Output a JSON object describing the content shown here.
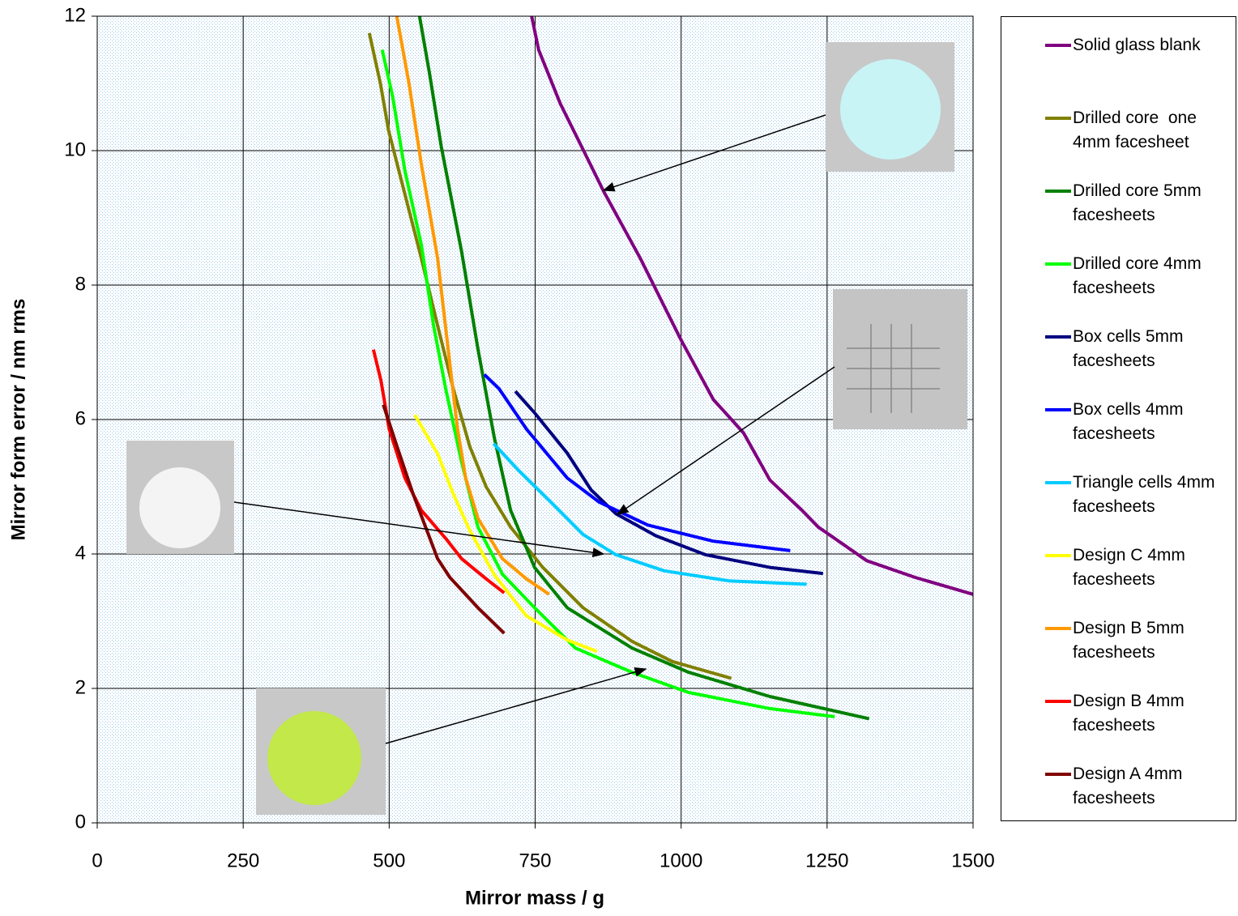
{
  "chart_data": {
    "type": "line",
    "xlabel": "Mirror mass / g",
    "ylabel": "Mirror form error / nm rms",
    "xlim": [
      0,
      1500
    ],
    "xticks": [
      0,
      250,
      500,
      750,
      1000,
      1250,
      1500
    ],
    "ylim": [
      0,
      12
    ],
    "yticks": [
      0,
      2,
      4,
      6,
      8,
      10,
      12
    ],
    "grid": true,
    "legend": "right",
    "series": [
      {
        "name": "Solid glass blank",
        "color": "#800080",
        "x": [
          744,
          756,
          793,
          833,
          867,
          930,
          999,
          1055,
          1107,
          1152,
          1207,
          1235,
          1318,
          1401,
          1500
        ],
        "values": [
          12.0,
          11.5,
          10.7,
          10.0,
          9.4,
          8.4,
          7.2,
          6.3,
          5.8,
          5.1,
          4.65,
          4.4,
          3.9,
          3.65,
          3.4
        ]
      },
      {
        "name": "Drilled core  one 4mm facesheet",
        "color": "#808000",
        "x": [
          466,
          485,
          499,
          527,
          555,
          583,
          610,
          638,
          666,
          708,
          763,
          832,
          916,
          985,
          1086
        ],
        "values": [
          11.75,
          11.0,
          10.3,
          9.35,
          8.4,
          7.4,
          6.45,
          5.6,
          5.0,
          4.4,
          3.8,
          3.2,
          2.7,
          2.4,
          2.15
        ]
      },
      {
        "name": "Drilled core 5mm facesheets",
        "color": "#008000",
        "x": [
          552,
          569,
          589,
          624,
          652,
          680,
          708,
          749,
          805,
          916,
          1013,
          1152,
          1322
        ],
        "values": [
          12.0,
          11.15,
          10.07,
          8.5,
          7.05,
          5.73,
          4.65,
          3.8,
          3.2,
          2.6,
          2.24,
          1.88,
          1.55
        ]
      },
      {
        "name": "Drilled core 4mm facesheets",
        "color": "#00ff00",
        "x": [
          488,
          506,
          527,
          555,
          576,
          597,
          624,
          652,
          694,
          749,
          819,
          916,
          1013,
          1152,
          1263
        ],
        "values": [
          11.5,
          10.8,
          9.7,
          8.6,
          7.4,
          6.45,
          5.37,
          4.4,
          3.7,
          3.2,
          2.6,
          2.24,
          1.94,
          1.7,
          1.58
        ]
      },
      {
        "name": "Box cells 5mm facesheets",
        "color": "#000080",
        "x": [
          716,
          749,
          805,
          846,
          888,
          957,
          1041,
          1152,
          1243
        ],
        "values": [
          6.42,
          6.1,
          5.5,
          4.95,
          4.6,
          4.27,
          3.99,
          3.8,
          3.71
        ]
      },
      {
        "name": "Box cells 4mm facesheets",
        "color": "#0000ff",
        "x": [
          663,
          688,
          735,
          805,
          860,
          943,
          1055,
          1187
        ],
        "values": [
          6.67,
          6.46,
          5.86,
          5.13,
          4.77,
          4.43,
          4.19,
          4.05
        ]
      },
      {
        "name": "Triangle cells 4mm facesheets",
        "color": "#00ccff",
        "x": [
          679,
          721,
          777,
          832,
          888,
          971,
          1082,
          1215
        ],
        "values": [
          5.64,
          5.25,
          4.77,
          4.29,
          3.99,
          3.75,
          3.6,
          3.55
        ]
      },
      {
        "name": "Design C 4mm facesheets",
        "color": "#ffff00",
        "x": [
          544,
          583,
          610,
          638,
          680,
          735,
          805,
          856
        ],
        "values": [
          6.07,
          5.49,
          4.89,
          4.35,
          3.69,
          3.08,
          2.72,
          2.55
        ]
      },
      {
        "name": "Design B 5mm facesheets",
        "color": "#ff9900",
        "x": [
          513,
          534,
          555,
          583,
          604,
          617,
          631,
          652,
          694,
          735,
          774
        ],
        "values": [
          12.0,
          11.0,
          9.8,
          8.4,
          6.82,
          5.86,
          5.13,
          4.53,
          3.93,
          3.63,
          3.4
        ]
      },
      {
        "name": "Design B 4mm facesheets",
        "color": "#ff0000",
        "x": [
          473,
          486,
          500,
          527,
          555,
          597,
          624,
          666,
          697
        ],
        "values": [
          7.04,
          6.58,
          5.86,
          5.13,
          4.65,
          4.23,
          3.93,
          3.63,
          3.42
        ]
      },
      {
        "name": "Design A 4mm facesheets",
        "color": "#800000",
        "x": [
          490,
          513,
          541,
          562,
          583,
          604,
          652,
          697
        ],
        "values": [
          6.22,
          5.61,
          4.89,
          4.41,
          3.93,
          3.65,
          3.2,
          2.82
        ]
      }
    ]
  }
}
